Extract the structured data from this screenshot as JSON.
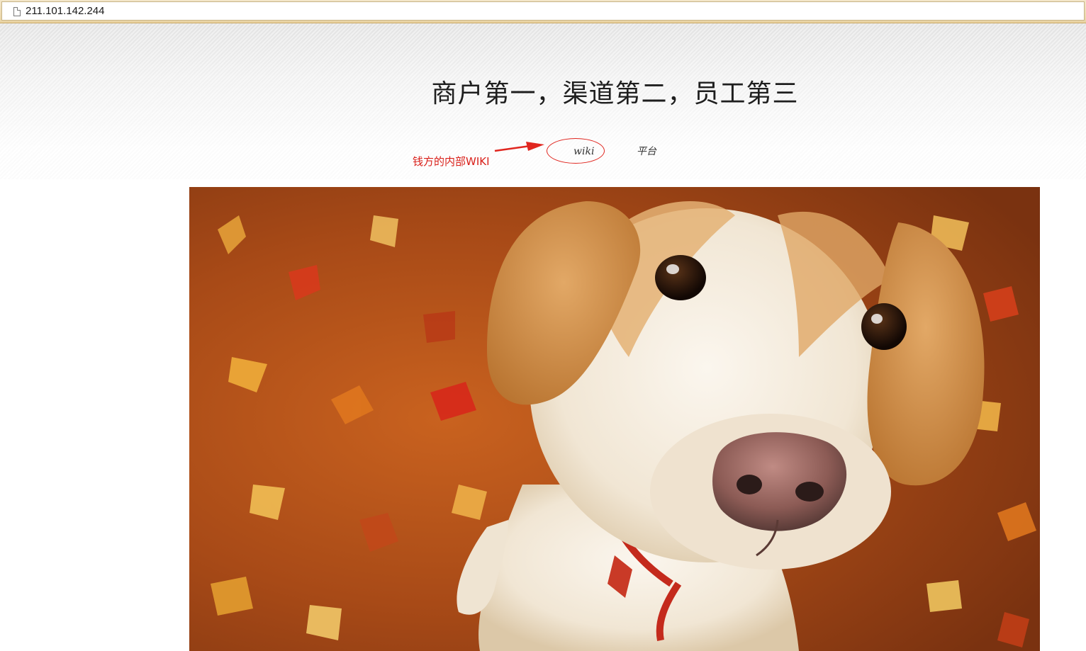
{
  "browser": {
    "url": "211.101.142.244",
    "page_icon": "document-icon"
  },
  "header": {
    "headline": "商户第一，渠道第二，员工第三"
  },
  "nav": {
    "items": [
      {
        "label": "wiki"
      },
      {
        "label": "平台"
      }
    ]
  },
  "annotation": {
    "text": "钱方的内部WIKI",
    "color": "#d9201a",
    "shape": "ellipse-and-arrow"
  },
  "hero": {
    "subject": "dog-on-autumn-leaves"
  }
}
